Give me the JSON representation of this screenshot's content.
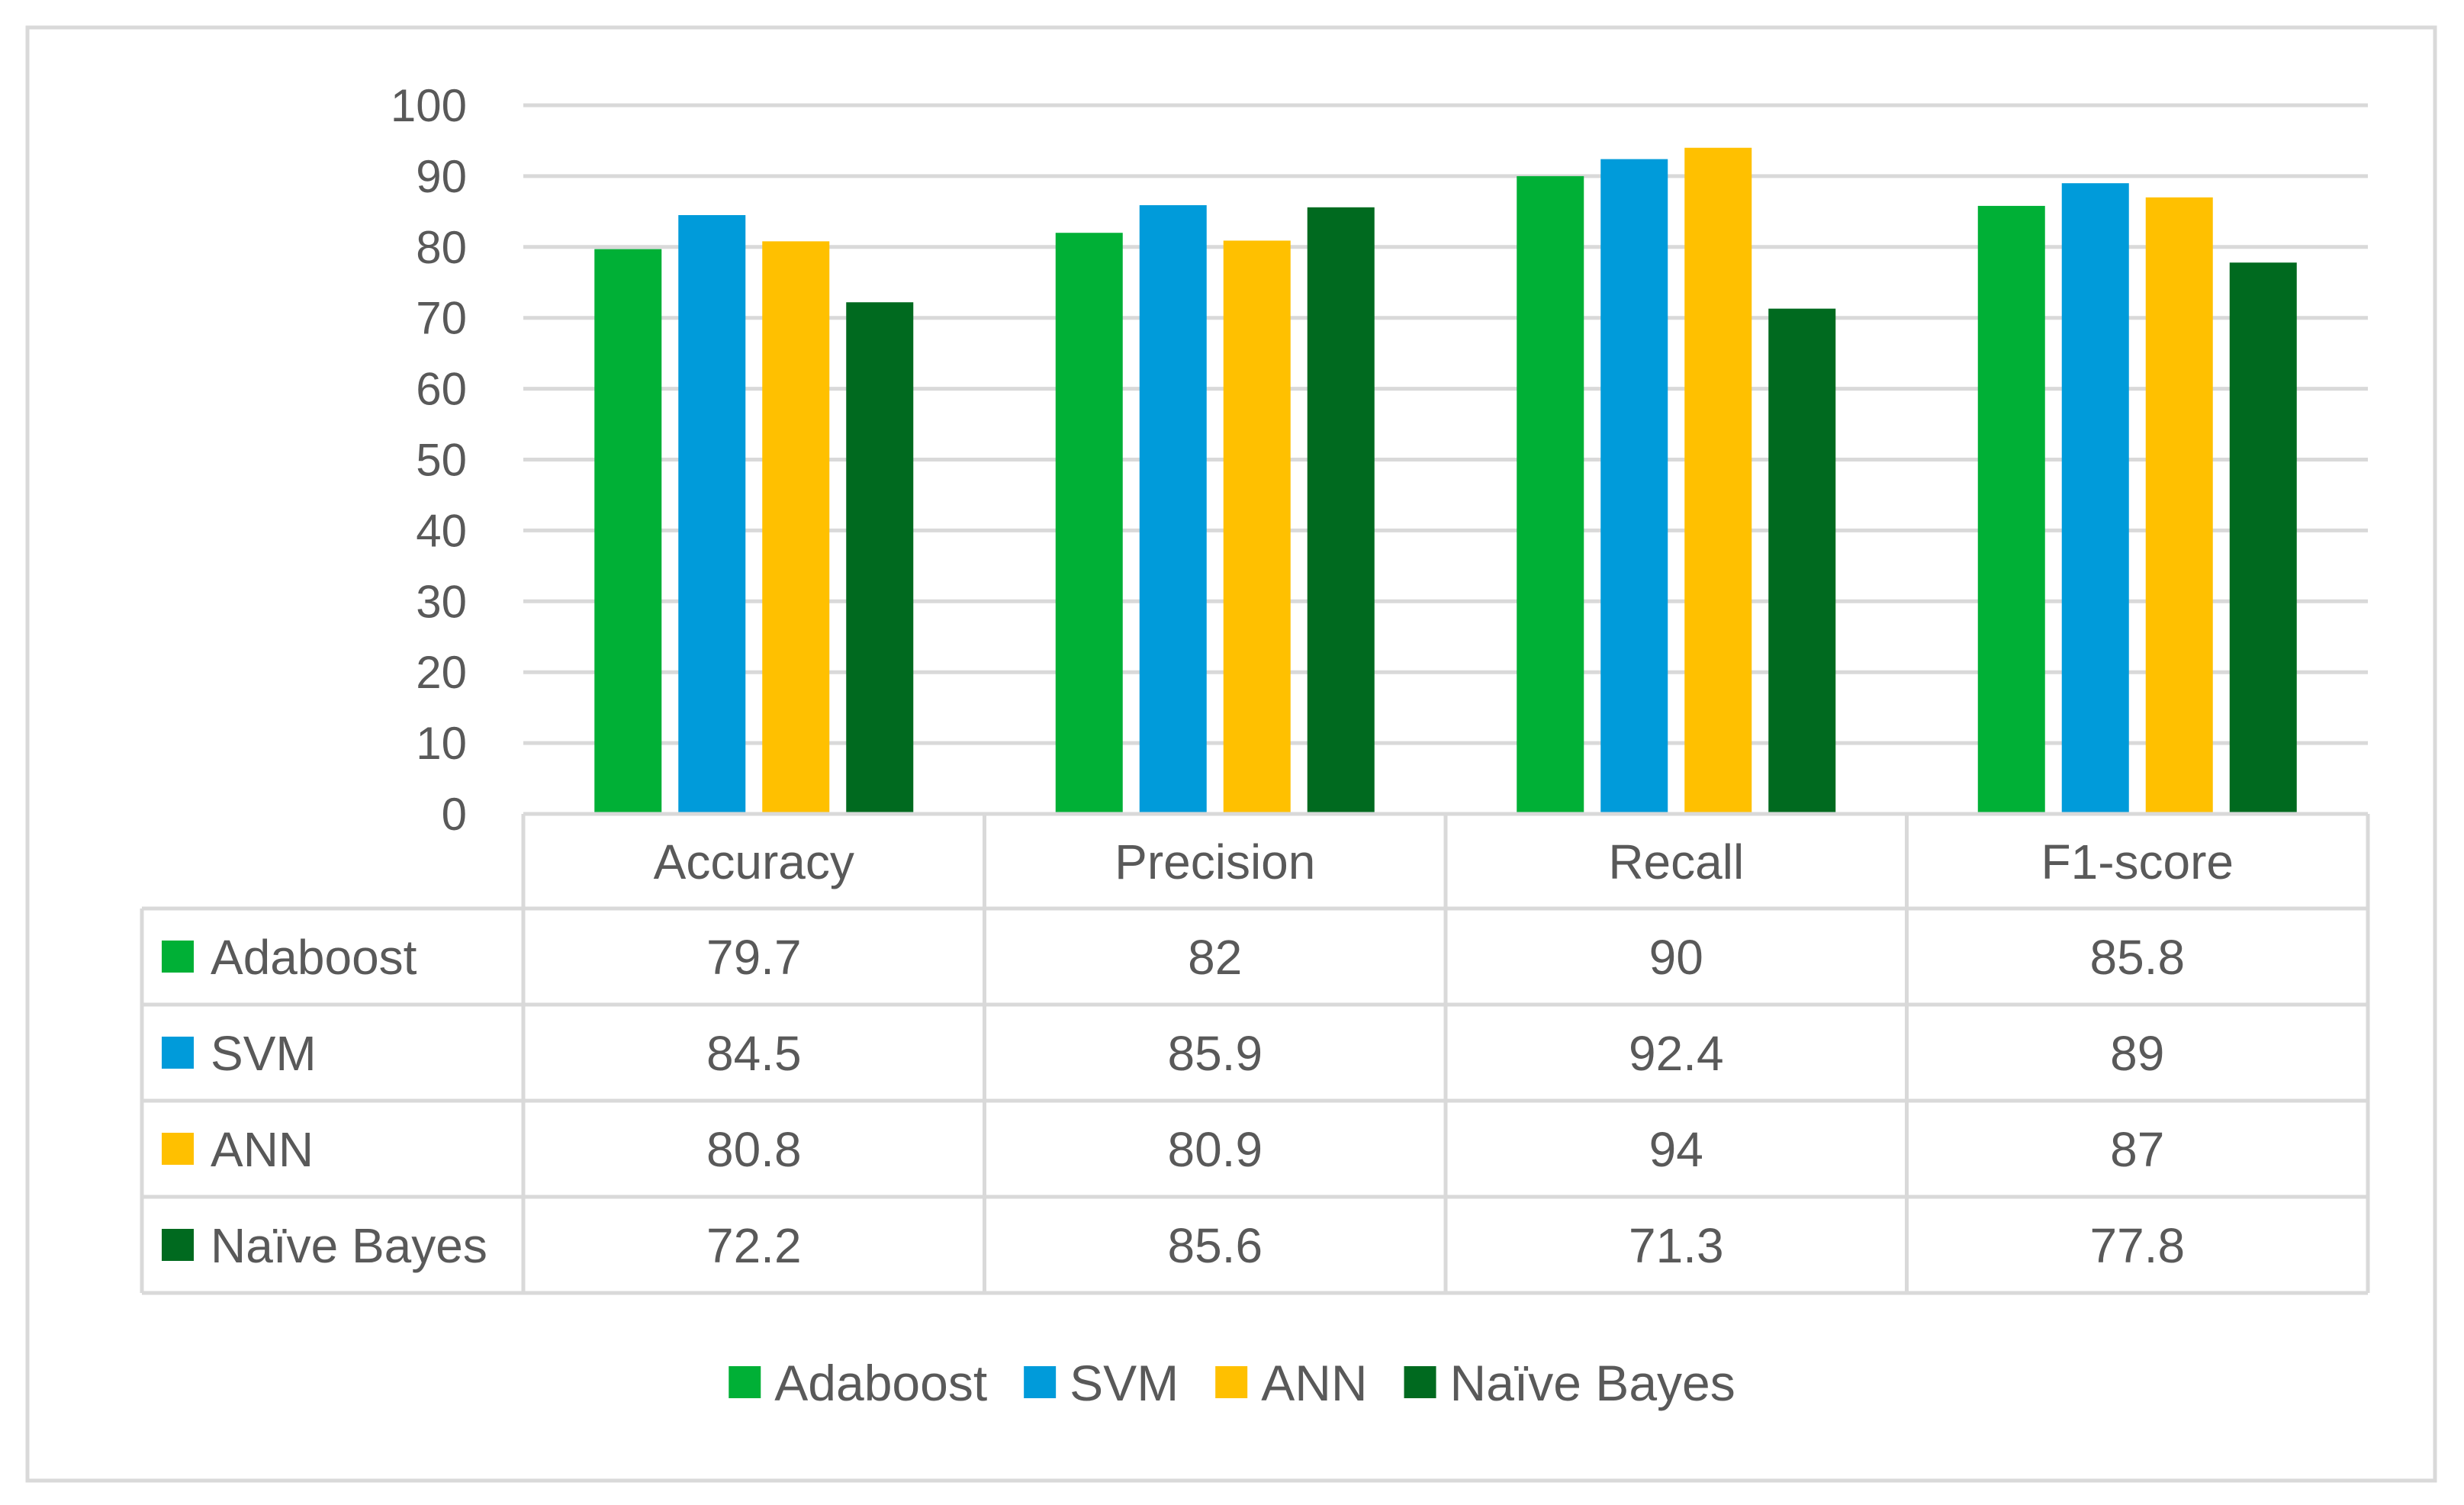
{
  "chart_data": {
    "type": "bar",
    "title": "",
    "xlabel": "",
    "ylabel": "",
    "ylim": [
      0,
      100
    ],
    "yticks": [
      "0",
      "10",
      "20",
      "30",
      "40",
      "50",
      "60",
      "70",
      "80",
      "90",
      "100"
    ],
    "grid": true,
    "legend_position": "bottom",
    "categories": [
      "Accuracy",
      "Precision",
      "Recall",
      "F1-score"
    ],
    "series": [
      {
        "name": "Adaboost",
        "color": "#00B036",
        "values": [
          79.7,
          82,
          90,
          85.8
        ],
        "labels": [
          "79.7",
          "82",
          "90",
          "85.8"
        ]
      },
      {
        "name": "SVM",
        "color": "#009BDA",
        "values": [
          84.5,
          85.9,
          92.4,
          89
        ],
        "labels": [
          "84.5",
          "85.9",
          "92.4",
          "89"
        ]
      },
      {
        "name": "ANN",
        "color": "#FFC000",
        "values": [
          80.8,
          80.9,
          94,
          87
        ],
        "labels": [
          "80.8",
          "80.9",
          "94",
          "87"
        ]
      },
      {
        "name": "Naïve Bayes",
        "color": "#006A1F",
        "values": [
          72.2,
          85.6,
          71.3,
          77.8
        ],
        "labels": [
          "72.2",
          "85.6",
          "71.3",
          "77.8"
        ]
      }
    ]
  }
}
